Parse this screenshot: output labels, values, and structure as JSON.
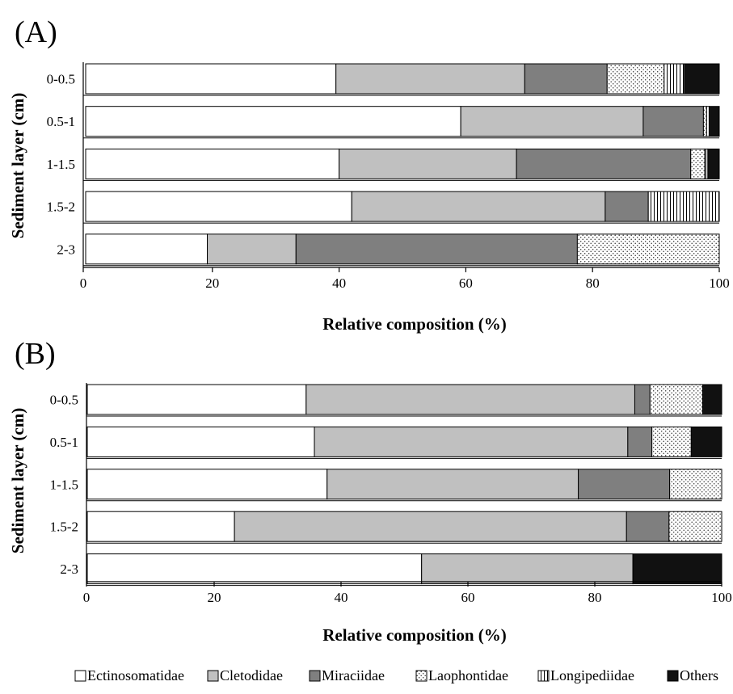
{
  "legend": [
    {
      "label": "Ectinosomatidae",
      "fill": "#ffffff",
      "pattern": "none"
    },
    {
      "label": "Cletodidae",
      "fill": "#c0c0c0",
      "pattern": "none"
    },
    {
      "label": "Miraciidae",
      "fill": "#7f7f7f",
      "pattern": "none"
    },
    {
      "label": "Laophontidae",
      "fill": "#ffffff",
      "pattern": "dots"
    },
    {
      "label": "Longipediidae",
      "fill": "#ffffff",
      "pattern": "vlines"
    },
    {
      "label": "Others",
      "fill": "#111111",
      "pattern": "none"
    }
  ],
  "chart_data": [
    {
      "type": "bar",
      "orientation": "horizontal",
      "stacked": true,
      "panel_label": "(A)",
      "xlabel": "Relative composition (%)",
      "ylabel": "Sediment layer (cm)",
      "xlim": [
        0,
        100
      ],
      "xticks": [
        "0",
        "20",
        "40",
        "60",
        "80",
        "100"
      ],
      "categories": [
        "0-0.5",
        "0.5-1",
        "1-1.5",
        "1.5-2",
        "2-3"
      ],
      "series": [
        {
          "name": "Ectinosomatidae",
          "values": [
            39.5,
            59.2,
            40.0,
            42.0,
            19.2
          ]
        },
        {
          "name": "Cletodidae",
          "values": [
            29.8,
            28.8,
            28.0,
            40.0,
            14.0
          ]
        },
        {
          "name": "Miraciidae",
          "values": [
            13.0,
            9.5,
            27.5,
            6.8,
            44.4
          ]
        },
        {
          "name": "Laophontidae",
          "values": [
            9.0,
            0.5,
            2.2,
            0.0,
            22.4
          ]
        },
        {
          "name": "Longipediidae",
          "values": [
            3.2,
            0.4,
            0.5,
            11.2,
            0.0
          ]
        },
        {
          "name": "Others",
          "values": [
            5.5,
            1.6,
            1.8,
            0.0,
            0.0
          ]
        }
      ]
    },
    {
      "type": "bar",
      "orientation": "horizontal",
      "stacked": true,
      "panel_label": "(B)",
      "xlabel": "Relative composition (%)",
      "ylabel": "Sediment layer (cm)",
      "xlim": [
        0,
        100
      ],
      "xticks": [
        "0",
        "20",
        "40",
        "60",
        "80",
        "100"
      ],
      "categories": [
        "0-0.5",
        "0.5-1",
        "1-1.5",
        "1.5-2",
        "2-3"
      ],
      "series": [
        {
          "name": "Ectinosomatidae",
          "values": [
            34.5,
            35.8,
            37.8,
            23.2,
            52.7
          ]
        },
        {
          "name": "Cletodidae",
          "values": [
            51.8,
            49.4,
            39.6,
            61.8,
            33.3
          ]
        },
        {
          "name": "Miraciidae",
          "values": [
            2.4,
            3.8,
            14.4,
            6.7,
            0.0
          ]
        },
        {
          "name": "Laophontidae",
          "values": [
            8.3,
            6.2,
            8.2,
            8.3,
            0.0
          ]
        },
        {
          "name": "Longipediidae",
          "values": [
            0.0,
            0.0,
            0.0,
            0.0,
            0.0
          ]
        },
        {
          "name": "Others",
          "values": [
            3.0,
            4.8,
            0.0,
            0.0,
            14.0
          ]
        }
      ]
    }
  ]
}
